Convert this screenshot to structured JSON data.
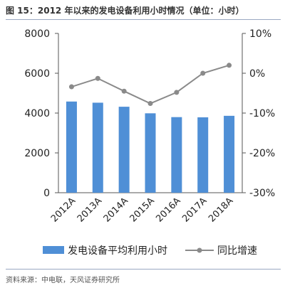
{
  "title": "图 15：2012 年以来的发电设备利用小时情况（单位：小时）",
  "source": "资料来源：中电联，天风证券研究所",
  "colors": {
    "bar": "#4f8fd6",
    "line": "#8a8a8a",
    "axis": "#555555",
    "text": "#222222"
  },
  "chart_data": {
    "type": "bar",
    "categories": [
      "2012A",
      "2013A",
      "2014A",
      "2015A",
      "2016A",
      "2017A",
      "2018A"
    ],
    "series": [
      {
        "name": "发电设备平均利用小时",
        "type": "bar",
        "axis": "left",
        "values": [
          4579,
          4521,
          4318,
          3988,
          3797,
          3786,
          3862
        ]
      },
      {
        "name": "同比增速",
        "type": "line",
        "axis": "right",
        "unit": "%",
        "values": [
          -3.4,
          -1.3,
          -4.5,
          -7.6,
          -4.8,
          0.0,
          2.0
        ]
      }
    ],
    "y_left": {
      "lim": [
        0,
        8000
      ],
      "ticks": [
        "0",
        "2000",
        "4000",
        "6000",
        "8000"
      ]
    },
    "y_right": {
      "lim": [
        -30,
        10
      ],
      "ticks": [
        "-30%",
        "-20%",
        "-10%",
        "0%",
        "10%"
      ]
    },
    "grid": false,
    "legend": "bottom"
  }
}
